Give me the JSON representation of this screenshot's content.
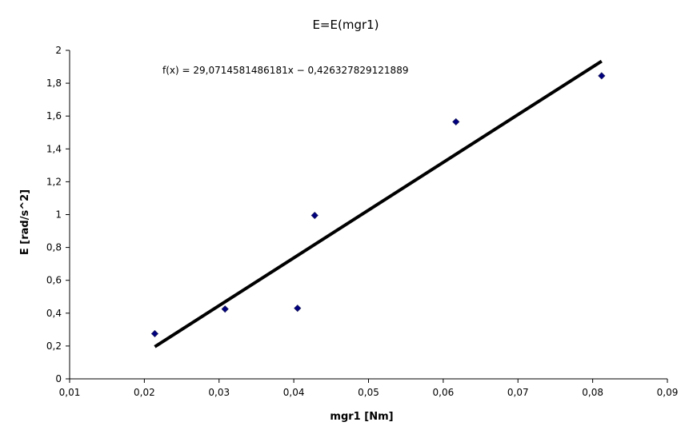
{
  "chart_data": {
    "type": "scatter",
    "title": "E=E(mgr1)",
    "xlabel": "mgr1 [Nm]",
    "ylabel": "E [rad/s^2]",
    "xlim": [
      0.01,
      0.09
    ],
    "ylim": [
      0,
      2
    ],
    "x_ticks": [
      "0,01",
      "0,02",
      "0,03",
      "0,04",
      "0,05",
      "0,06",
      "0,07",
      "0,08",
      "0,09"
    ],
    "x_tick_values": [
      0.01,
      0.02,
      0.03,
      0.04,
      0.05,
      0.06,
      0.07,
      0.08,
      0.09
    ],
    "y_ticks": [
      "0",
      "0,2",
      "0,4",
      "0,6",
      "0,8",
      "1",
      "1,2",
      "1,4",
      "1,6",
      "1,8",
      "2"
    ],
    "y_tick_values": [
      0,
      0.2,
      0.4,
      0.6,
      0.8,
      1.0,
      1.2,
      1.4,
      1.6,
      1.8,
      2.0
    ],
    "grid": false,
    "legend": "none",
    "series": [
      {
        "x": [
          0.0214,
          0.0308,
          0.0405,
          0.0428,
          0.0617,
          0.0812
        ],
        "y": [
          0.275,
          0.425,
          0.43,
          0.995,
          1.565,
          1.845
        ],
        "marker": "diamond",
        "color": "#000080"
      }
    ],
    "trendline": {
      "slope": 29.0714581486181,
      "intercept": -0.426327829121889,
      "x_range": [
        0.0214,
        0.0812
      ],
      "color": "#000000",
      "equation": "f(x) = 29,0714581486181x − 0,426327829121889"
    }
  }
}
